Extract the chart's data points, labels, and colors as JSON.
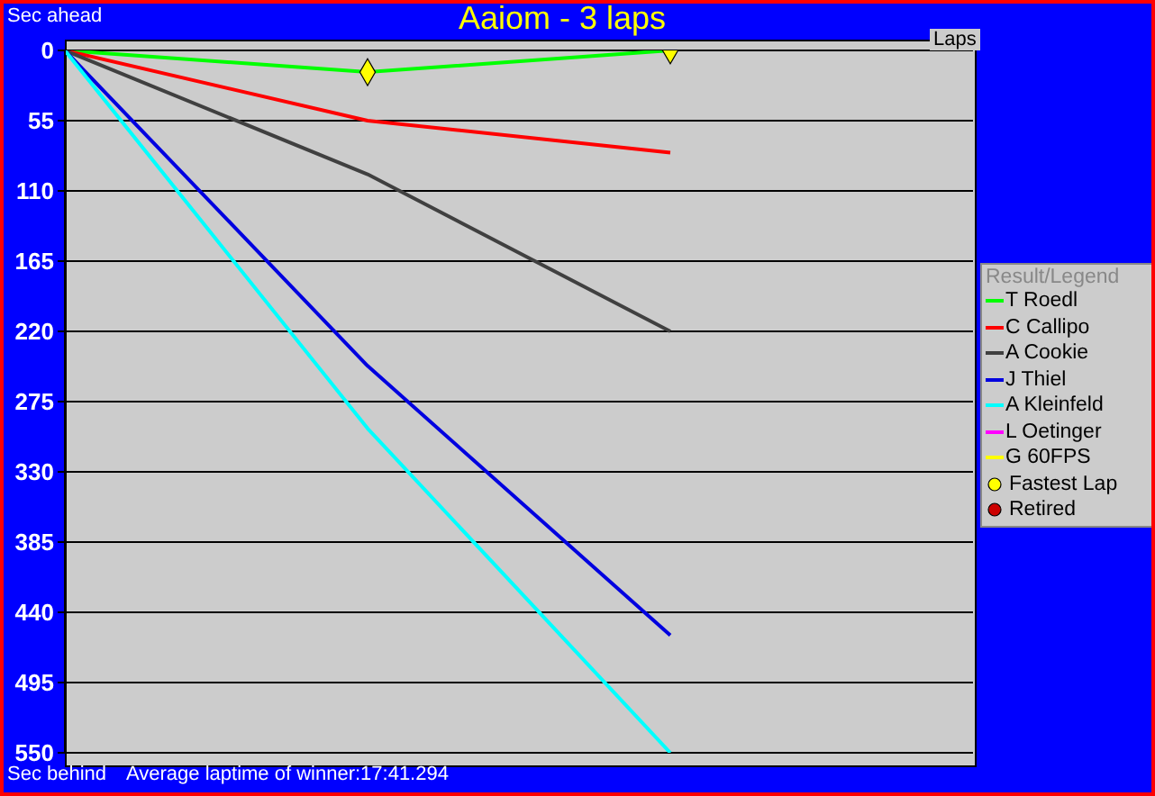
{
  "chart_data": {
    "type": "line",
    "title": "Aaiom - 3 laps",
    "ylabel": "Sec ahead",
    "xlabel": "Laps",
    "legend_title": "Result/Legend",
    "annotations": [
      "Sec behind",
      "Average laptime of winner:17:41.294"
    ],
    "categories": [
      null,
      null,
      null,
      null
    ],
    "ylim": [
      550,
      0
    ],
    "yticks": [
      0,
      55,
      110,
      165,
      220,
      275,
      330,
      385,
      440,
      495,
      550
    ],
    "grid": "y",
    "legend": "right",
    "tick_labels": "y",
    "marker": "none",
    "line_style": "solid",
    "series": [
      {
        "name": "T Roedl",
        "color": "#00ff00",
        "values": [
          0,
          17,
          0,
          null
        ]
      },
      {
        "name": "C Callipo",
        "color": "#ff0000",
        "values": [
          0,
          55,
          80,
          null
        ]
      },
      {
        "name": "A Cookie",
        "color": "#404040",
        "values": [
          0,
          97,
          220,
          null
        ]
      },
      {
        "name": "J Thiel",
        "color": "#0000e0",
        "values": [
          0,
          247,
          458,
          null
        ]
      },
      {
        "name": "A Kleinfeld",
        "color": "#00ffff",
        "values": [
          0,
          296,
          550,
          null
        ]
      },
      {
        "name": "L Oetinger",
        "color": "#ff00ff",
        "values": [
          null,
          null,
          null,
          null
        ]
      },
      {
        "name": "G 60FPS",
        "color": "#ffff00",
        "values": [
          null,
          null,
          null,
          null
        ]
      },
      {
        "name": "Fastest Lap",
        "type": "scatter",
        "marker": "diamond",
        "color": "#ffff00",
        "values": [
          null,
          17,
          0,
          null
        ]
      },
      {
        "name": "Retired",
        "type": "scatter",
        "marker": "circle",
        "color": "#cc0000",
        "values": [
          null,
          null,
          null,
          null
        ]
      }
    ]
  }
}
